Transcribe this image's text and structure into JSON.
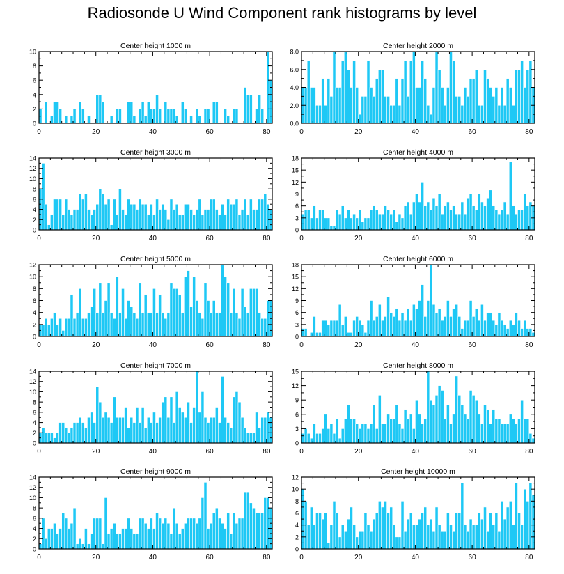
{
  "figure_title": "Radiosonde U Wind Component rank histograms by level",
  "colors": {
    "bar_fill": "#1ec8f5",
    "bar_edge": "#ffffff",
    "axis": "#000000"
  },
  "chart_data": [
    {
      "type": "bar",
      "title": "Center height 1000 m",
      "xlabel": "",
      "ylabel": "",
      "xlim": [
        0,
        82
      ],
      "ylim": [
        0,
        10
      ],
      "xticks": [
        "0",
        "20",
        "40",
        "60",
        "80"
      ],
      "yticks": [
        "0",
        "2",
        "4",
        "6",
        "8",
        "10"
      ],
      "values": [
        2,
        0,
        3,
        0,
        1,
        3,
        3,
        2,
        0,
        1,
        0,
        1,
        2,
        0,
        3,
        2,
        0,
        1,
        0,
        0,
        4,
        4,
        3,
        0,
        0,
        1,
        0,
        2,
        2,
        0,
        0,
        3,
        3,
        1,
        0,
        2,
        3,
        1,
        3,
        2,
        2,
        4,
        2,
        0,
        3,
        2,
        2,
        2,
        1,
        0,
        3,
        2,
        0,
        1,
        0,
        2,
        1,
        0,
        2,
        2,
        0,
        3,
        3,
        0,
        0,
        2,
        1,
        0,
        2,
        2,
        0,
        0,
        5,
        4,
        4,
        0,
        2,
        4,
        2,
        0,
        10,
        6
      ]
    },
    {
      "type": "bar",
      "title": "Center height 2000 m",
      "xlabel": "",
      "ylabel": "",
      "xlim": [
        0,
        82
      ],
      "ylim": [
        0,
        8
      ],
      "xticks": [
        "0",
        "20",
        "40",
        "60",
        "80"
      ],
      "yticks": [
        "0.0",
        "2.0",
        "4.0",
        "6.0",
        "8.0"
      ],
      "values": [
        4,
        4,
        7,
        4,
        4,
        2,
        2,
        5,
        2,
        5,
        3,
        8,
        4,
        4,
        7,
        8,
        6,
        4,
        7,
        4,
        1,
        3,
        3,
        7,
        4,
        3,
        5,
        6,
        6,
        3,
        3,
        2,
        2,
        5,
        2,
        5,
        7,
        3,
        7,
        8,
        4,
        4,
        7,
        5,
        2,
        1,
        4,
        8,
        6,
        4,
        2,
        4,
        8,
        7,
        3,
        3,
        2,
        4,
        3,
        5,
        5,
        6,
        2,
        2,
        6,
        5,
        4,
        3,
        4,
        2,
        4,
        2,
        5,
        4,
        2,
        6,
        6,
        7,
        4,
        6,
        7,
        4
      ]
    },
    {
      "type": "bar",
      "title": "Center height 3000 m",
      "xlabel": "",
      "ylabel": "",
      "xlim": [
        0,
        82
      ],
      "ylim": [
        0,
        14
      ],
      "xticks": [
        "0",
        "20",
        "40",
        "60",
        "80"
      ],
      "yticks": [
        "0",
        "2",
        "4",
        "6",
        "8",
        "10",
        "12",
        "14"
      ],
      "values": [
        8,
        13,
        5,
        1,
        3,
        6,
        6,
        6,
        3,
        6,
        4,
        3,
        4,
        4,
        7,
        6,
        7,
        4,
        3,
        4,
        5,
        8,
        7,
        5,
        6,
        1,
        6,
        3,
        8,
        4,
        3,
        6,
        5,
        5,
        4,
        6,
        5,
        5,
        3,
        5,
        3,
        6,
        4,
        5,
        4,
        2,
        6,
        4,
        5,
        3,
        3,
        5,
        5,
        4,
        3,
        4,
        6,
        3,
        4,
        4,
        6,
        6,
        4,
        3,
        5,
        3,
        6,
        5,
        5,
        6,
        3,
        4,
        6,
        3,
        6,
        4,
        4,
        6,
        6,
        7,
        5,
        4
      ]
    },
    {
      "type": "bar",
      "title": "Center height 4000 m",
      "xlabel": "",
      "ylabel": "",
      "xlim": [
        0,
        82
      ],
      "ylim": [
        0,
        18
      ],
      "xticks": [
        "0",
        "20",
        "40",
        "60",
        "80"
      ],
      "yticks": [
        "0",
        "3",
        "6",
        "9",
        "12",
        "15",
        "18"
      ],
      "values": [
        4,
        5,
        5,
        3,
        6,
        3,
        5,
        5,
        3,
        3,
        1,
        1,
        5,
        4,
        6,
        3,
        5,
        3,
        4,
        3,
        5,
        2,
        3,
        3,
        5,
        6,
        5,
        4,
        4,
        6,
        5,
        4,
        5,
        2,
        4,
        3,
        6,
        7,
        4,
        7,
        9,
        7,
        12,
        6,
        7,
        5,
        8,
        6,
        9,
        4,
        6,
        7,
        5,
        6,
        4,
        4,
        7,
        4,
        8,
        9,
        6,
        5,
        9,
        7,
        6,
        8,
        10,
        6,
        5,
        4,
        5,
        7,
        4,
        17,
        6,
        4,
        5,
        5,
        9,
        6,
        7,
        6
      ]
    },
    {
      "type": "bar",
      "title": "Center height 5000 m",
      "xlabel": "",
      "ylabel": "",
      "xlim": [
        0,
        82
      ],
      "ylim": [
        0,
        12
      ],
      "xticks": [
        "0",
        "20",
        "40",
        "60",
        "80"
      ],
      "yticks": [
        "0",
        "2",
        "4",
        "6",
        "8",
        "10",
        "12"
      ],
      "values": [
        2,
        2,
        3,
        2,
        3,
        4,
        2,
        3,
        1,
        3,
        3,
        7,
        3,
        4,
        8,
        3,
        3,
        4,
        5,
        8,
        4,
        9,
        4,
        6,
        9,
        4,
        3,
        10,
        4,
        8,
        3,
        6,
        5,
        4,
        3,
        9,
        4,
        7,
        4,
        4,
        8,
        4,
        7,
        4,
        3,
        4,
        9,
        8,
        8,
        7,
        4,
        10,
        11,
        5,
        10,
        6,
        4,
        3,
        9,
        6,
        4,
        6,
        4,
        4,
        12,
        10,
        9,
        4,
        8,
        4,
        3,
        8,
        5,
        4,
        8,
        8,
        8,
        4,
        3,
        3,
        6,
        6
      ]
    },
    {
      "type": "bar",
      "title": "Center height 6000 m",
      "xlabel": "",
      "ylabel": "",
      "xlim": [
        0,
        82
      ],
      "ylim": [
        0,
        18
      ],
      "xticks": [
        "0",
        "20",
        "40",
        "60",
        "80"
      ],
      "yticks": [
        "0",
        "3",
        "6",
        "9",
        "12",
        "15",
        "18"
      ],
      "values": [
        2,
        2,
        0,
        1,
        5,
        1,
        1,
        4,
        4,
        3,
        4,
        4,
        4,
        8,
        3,
        5,
        1,
        1,
        4,
        5,
        4,
        3,
        1,
        4,
        9,
        4,
        5,
        8,
        4,
        5,
        10,
        6,
        5,
        7,
        4,
        6,
        4,
        7,
        4,
        8,
        7,
        9,
        13,
        5,
        9,
        18,
        8,
        6,
        7,
        4,
        5,
        9,
        5,
        7,
        8,
        5,
        2,
        4,
        4,
        9,
        5,
        7,
        4,
        8,
        4,
        6,
        6,
        4,
        3,
        6,
        4,
        3,
        2,
        4,
        3,
        6,
        4,
        2,
        4,
        2,
        2,
        1
      ]
    },
    {
      "type": "bar",
      "title": "Center height 7000 m",
      "xlabel": "",
      "ylabel": "",
      "xlim": [
        0,
        82
      ],
      "ylim": [
        0,
        14
      ],
      "xticks": [
        "0",
        "20",
        "40",
        "60",
        "80"
      ],
      "yticks": [
        "0",
        "2",
        "4",
        "6",
        "8",
        "10",
        "12",
        "14"
      ],
      "values": [
        2,
        3,
        2,
        2,
        2,
        1,
        2,
        4,
        4,
        3,
        2,
        3,
        4,
        4,
        5,
        4,
        3,
        5,
        6,
        4,
        11,
        8,
        5,
        6,
        5,
        4,
        9,
        5,
        5,
        5,
        7,
        3,
        5,
        4,
        7,
        4,
        7,
        3,
        5,
        4,
        6,
        4,
        5,
        8,
        9,
        5,
        9,
        4,
        10,
        7,
        6,
        5,
        8,
        4,
        7,
        14,
        6,
        10,
        5,
        4,
        5,
        5,
        7,
        4,
        13,
        5,
        4,
        3,
        9,
        10,
        8,
        5,
        3,
        2,
        2,
        2,
        6,
        3,
        5,
        5,
        6,
        5
      ]
    },
    {
      "type": "bar",
      "title": "Center height 8000 m",
      "xlabel": "",
      "ylabel": "",
      "xlim": [
        0,
        82
      ],
      "ylim": [
        0,
        15
      ],
      "xticks": [
        "0",
        "20",
        "40",
        "60",
        "80"
      ],
      "yticks": [
        "0",
        "3",
        "6",
        "9",
        "12",
        "15"
      ],
      "values": [
        2,
        3,
        2,
        1,
        4,
        2,
        2,
        3,
        6,
        3,
        4,
        2,
        5,
        1,
        3,
        5,
        8,
        5,
        5,
        4,
        3,
        4,
        4,
        3,
        4,
        8,
        3,
        10,
        4,
        4,
        6,
        5,
        5,
        8,
        4,
        3,
        7,
        5,
        6,
        3,
        9,
        6,
        4,
        5,
        15,
        9,
        8,
        10,
        12,
        11,
        5,
        8,
        4,
        6,
        14,
        10,
        8,
        6,
        5,
        11,
        10,
        9,
        6,
        4,
        8,
        7,
        4,
        7,
        5,
        5,
        4,
        4,
        4,
        6,
        5,
        4,
        5,
        9,
        5,
        5,
        2,
        1
      ]
    },
    {
      "type": "bar",
      "title": "Center height 9000 m",
      "xlabel": "",
      "ylabel": "",
      "xlim": [
        0,
        82
      ],
      "ylim": [
        0,
        14
      ],
      "xticks": [
        "0",
        "20",
        "40",
        "60",
        "80"
      ],
      "yticks": [
        "0",
        "2",
        "4",
        "6",
        "8",
        "10",
        "12",
        "14"
      ],
      "values": [
        1,
        6,
        2,
        4,
        4,
        5,
        3,
        4,
        7,
        6,
        4,
        5,
        8,
        1,
        2,
        1,
        4,
        1,
        3,
        6,
        6,
        6,
        1,
        10,
        3,
        4,
        5,
        3,
        3,
        4,
        4,
        6,
        4,
        3,
        3,
        6,
        6,
        5,
        4,
        6,
        4,
        7,
        6,
        5,
        6,
        5,
        3,
        8,
        5,
        3,
        4,
        5,
        6,
        6,
        6,
        5,
        6,
        10,
        13,
        4,
        5,
        7,
        8,
        6,
        5,
        4,
        7,
        3,
        7,
        5,
        6,
        6,
        11,
        11,
        9,
        8,
        7,
        7,
        7,
        10,
        10,
        8
      ]
    },
    {
      "type": "bar",
      "title": "Center height 10000 m",
      "xlabel": "",
      "ylabel": "",
      "xlim": [
        0,
        82
      ],
      "ylim": [
        0,
        12
      ],
      "xticks": [
        "0",
        "20",
        "40",
        "60",
        "80"
      ],
      "yticks": [
        "0",
        "2",
        "4",
        "6",
        "8",
        "10",
        "12"
      ],
      "values": [
        10,
        8,
        4,
        7,
        4,
        6,
        6,
        5,
        6,
        1,
        4,
        8,
        6,
        2,
        4,
        3,
        5,
        7,
        4,
        2,
        3,
        3,
        6,
        4,
        3,
        5,
        6,
        8,
        7,
        8,
        6,
        7,
        4,
        2,
        2,
        8,
        3,
        5,
        6,
        4,
        4,
        5,
        6,
        7,
        4,
        5,
        3,
        7,
        4,
        3,
        3,
        6,
        4,
        3,
        6,
        6,
        11,
        4,
        3,
        5,
        4,
        4,
        6,
        5,
        7,
        3,
        6,
        4,
        6,
        3,
        8,
        5,
        7,
        8,
        4,
        11,
        6,
        4,
        10,
        8,
        11,
        9
      ]
    }
  ]
}
